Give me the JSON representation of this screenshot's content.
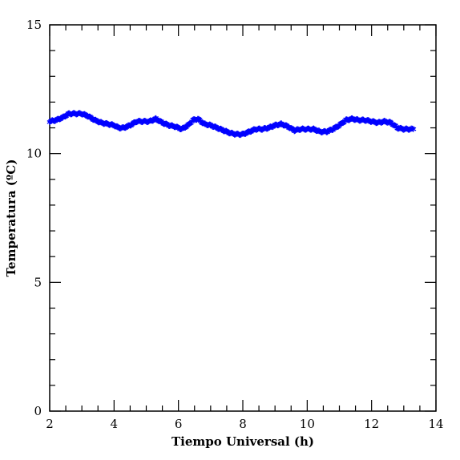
{
  "chart_data": {
    "type": "scatter",
    "xlabel": "Tiempo Universal (h)",
    "ylabel": "Temperatura (ºC)",
    "xlim": [
      2,
      14
    ],
    "ylim": [
      0,
      15
    ],
    "x_ticks": [
      2,
      4,
      6,
      8,
      10,
      12,
      14
    ],
    "y_ticks": [
      0,
      5,
      10,
      15
    ],
    "x_tick_labels": [
      "2",
      "4",
      "6",
      "8",
      "10",
      "12",
      "14"
    ],
    "y_tick_labels": [
      "0",
      "5",
      "10",
      "15"
    ],
    "marker": "asterisk",
    "series_color": "#0000ff",
    "grid": false,
    "series": [
      {
        "points": [
          [
            2.0,
            11.25
          ],
          [
            2.2,
            11.3
          ],
          [
            2.4,
            11.4
          ],
          [
            2.6,
            11.55
          ],
          [
            2.8,
            11.55
          ],
          [
            3.0,
            11.55
          ],
          [
            3.2,
            11.45
          ],
          [
            3.4,
            11.3
          ],
          [
            3.6,
            11.2
          ],
          [
            3.8,
            11.15
          ],
          [
            4.0,
            11.1
          ],
          [
            4.15,
            11.0
          ],
          [
            4.3,
            11.0
          ],
          [
            4.5,
            11.1
          ],
          [
            4.7,
            11.25
          ],
          [
            4.9,
            11.25
          ],
          [
            5.1,
            11.25
          ],
          [
            5.3,
            11.35
          ],
          [
            5.5,
            11.2
          ],
          [
            5.7,
            11.1
          ],
          [
            5.9,
            11.05
          ],
          [
            6.1,
            10.95
          ],
          [
            6.3,
            11.1
          ],
          [
            6.45,
            11.3
          ],
          [
            6.6,
            11.35
          ],
          [
            6.8,
            11.15
          ],
          [
            7.0,
            11.1
          ],
          [
            7.2,
            11.0
          ],
          [
            7.4,
            10.9
          ],
          [
            7.6,
            10.8
          ],
          [
            7.8,
            10.75
          ],
          [
            8.0,
            10.75
          ],
          [
            8.2,
            10.85
          ],
          [
            8.4,
            10.95
          ],
          [
            8.6,
            10.95
          ],
          [
            8.8,
            11.0
          ],
          [
            9.0,
            11.1
          ],
          [
            9.2,
            11.15
          ],
          [
            9.4,
            11.05
          ],
          [
            9.6,
            10.9
          ],
          [
            9.8,
            10.95
          ],
          [
            10.0,
            10.95
          ],
          [
            10.2,
            10.95
          ],
          [
            10.4,
            10.85
          ],
          [
            10.6,
            10.85
          ],
          [
            10.8,
            10.95
          ],
          [
            11.0,
            11.1
          ],
          [
            11.2,
            11.3
          ],
          [
            11.4,
            11.35
          ],
          [
            11.6,
            11.3
          ],
          [
            11.8,
            11.3
          ],
          [
            12.0,
            11.25
          ],
          [
            12.2,
            11.2
          ],
          [
            12.4,
            11.25
          ],
          [
            12.6,
            11.2
          ],
          [
            12.8,
            11.0
          ],
          [
            13.0,
            10.95
          ],
          [
            13.2,
            10.95
          ],
          [
            13.3,
            10.95
          ]
        ]
      }
    ]
  }
}
